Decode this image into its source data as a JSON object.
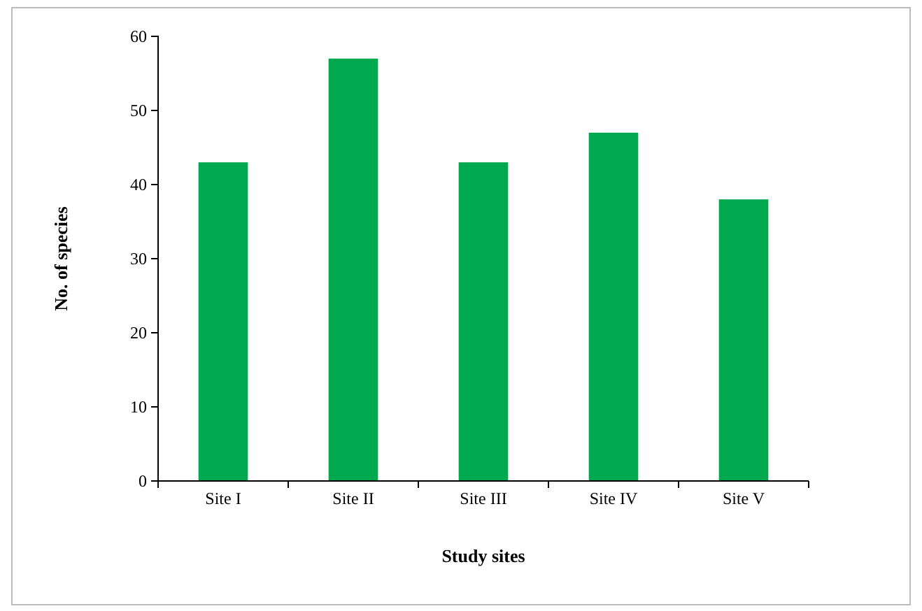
{
  "chart_data": {
    "type": "bar",
    "xlabel": "Study sites",
    "ylabel": "No. of species",
    "categories": [
      "Site I",
      "Site II",
      "Site III",
      "Site IV",
      "Site V"
    ],
    "values": [
      43,
      57,
      43,
      47,
      38
    ],
    "color": "#00a84f",
    "ylim": [
      0,
      60
    ],
    "yticks": [
      0,
      10,
      20,
      30,
      40,
      50,
      60
    ],
    "grid": false
  }
}
